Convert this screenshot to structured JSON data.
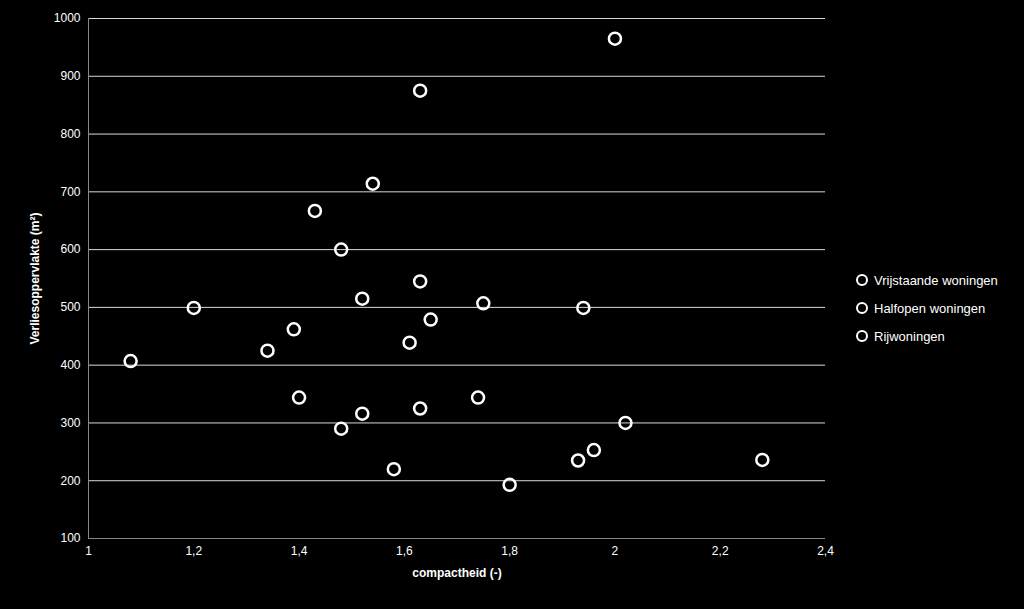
{
  "chart_data": {
    "type": "scatter",
    "x_label": "compactheid (-)",
    "y_label": "Verliesoppervlakte (m²)",
    "xlim": [
      1,
      2.4
    ],
    "xticks": [
      1,
      {
        "value": 1.2,
        "label": "1,2"
      },
      {
        "value": 1.4,
        "label": "1,4"
      },
      {
        "value": 1.6,
        "label": "1,6"
      },
      {
        "value": 1.8,
        "label": "1,8"
      },
      2,
      {
        "value": 2.2,
        "label": "2,2"
      },
      {
        "value": 2.4,
        "label": "2,4"
      }
    ],
    "ylim": [
      100,
      1000
    ],
    "yticks": [
      100,
      200,
      300,
      400,
      500,
      600,
      700,
      800,
      900,
      1000
    ],
    "grid": true,
    "legend": "right",
    "series": [
      {
        "name": "Vrijstaande woningen",
        "color": "#ffffff",
        "marker": "circle",
        "x": [
          1.08,
          1.2,
          1.34,
          1.39,
          1.43,
          1.48,
          1.54,
          1.63,
          2.0,
          1.52,
          1.63,
          1.75,
          1.94
        ],
        "values": [
          407,
          499,
          425,
          462,
          667,
          600,
          714,
          875,
          965,
          515,
          545,
          507,
          499
        ]
      },
      {
        "name": "Halfopen woningen",
        "color": "#ffffff",
        "marker": "circle",
        "x": [
          1.4,
          1.48,
          1.52,
          1.61,
          1.63,
          1.65,
          1.74
        ],
        "values": [
          344,
          290,
          316,
          439,
          325,
          479,
          344
        ]
      },
      {
        "name": "Rijwoningen",
        "color": "#ffffff",
        "marker": "circle",
        "x": [
          1.58,
          1.8,
          1.93,
          1.96,
          2.02,
          2.28
        ],
        "values": [
          220,
          193,
          235,
          253,
          300,
          236
        ]
      }
    ]
  }
}
